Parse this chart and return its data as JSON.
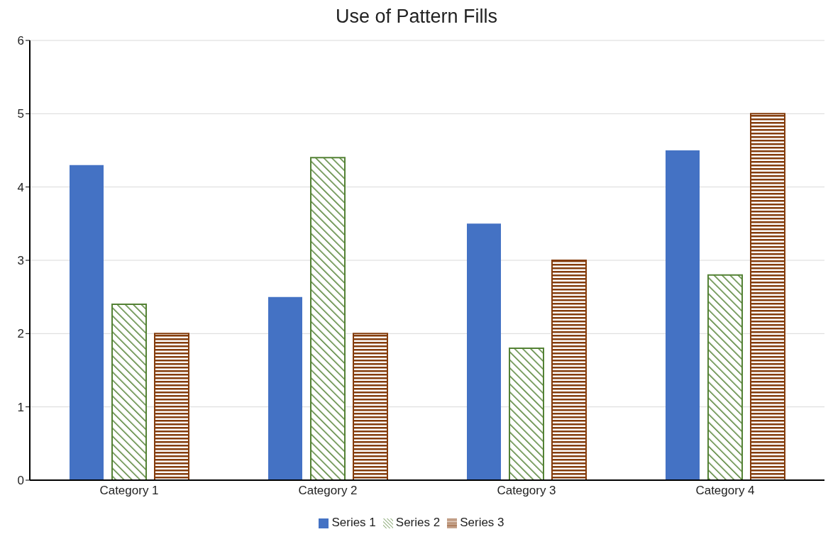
{
  "chart_data": {
    "type": "bar",
    "title": "Use of Pattern Fills",
    "categories": [
      "Category 1",
      "Category 2",
      "Category 3",
      "Category 4"
    ],
    "series": [
      {
        "name": "Series 1",
        "color": "#4472c4",
        "values": [
          4.3,
          2.5,
          3.5,
          4.5
        ]
      },
      {
        "name": "Series 2",
        "color": "#548235",
        "values": [
          2.4,
          4.4,
          1.8,
          2.8
        ]
      },
      {
        "name": "Series 3",
        "color": "#843c0c",
        "values": [
          2.0,
          2.0,
          3.0,
          5.0
        ]
      }
    ],
    "ylim": [
      0,
      6
    ],
    "yticks": [
      0,
      1,
      2,
      3,
      4,
      5,
      6
    ],
    "grid": "y",
    "legend": "bottom"
  }
}
